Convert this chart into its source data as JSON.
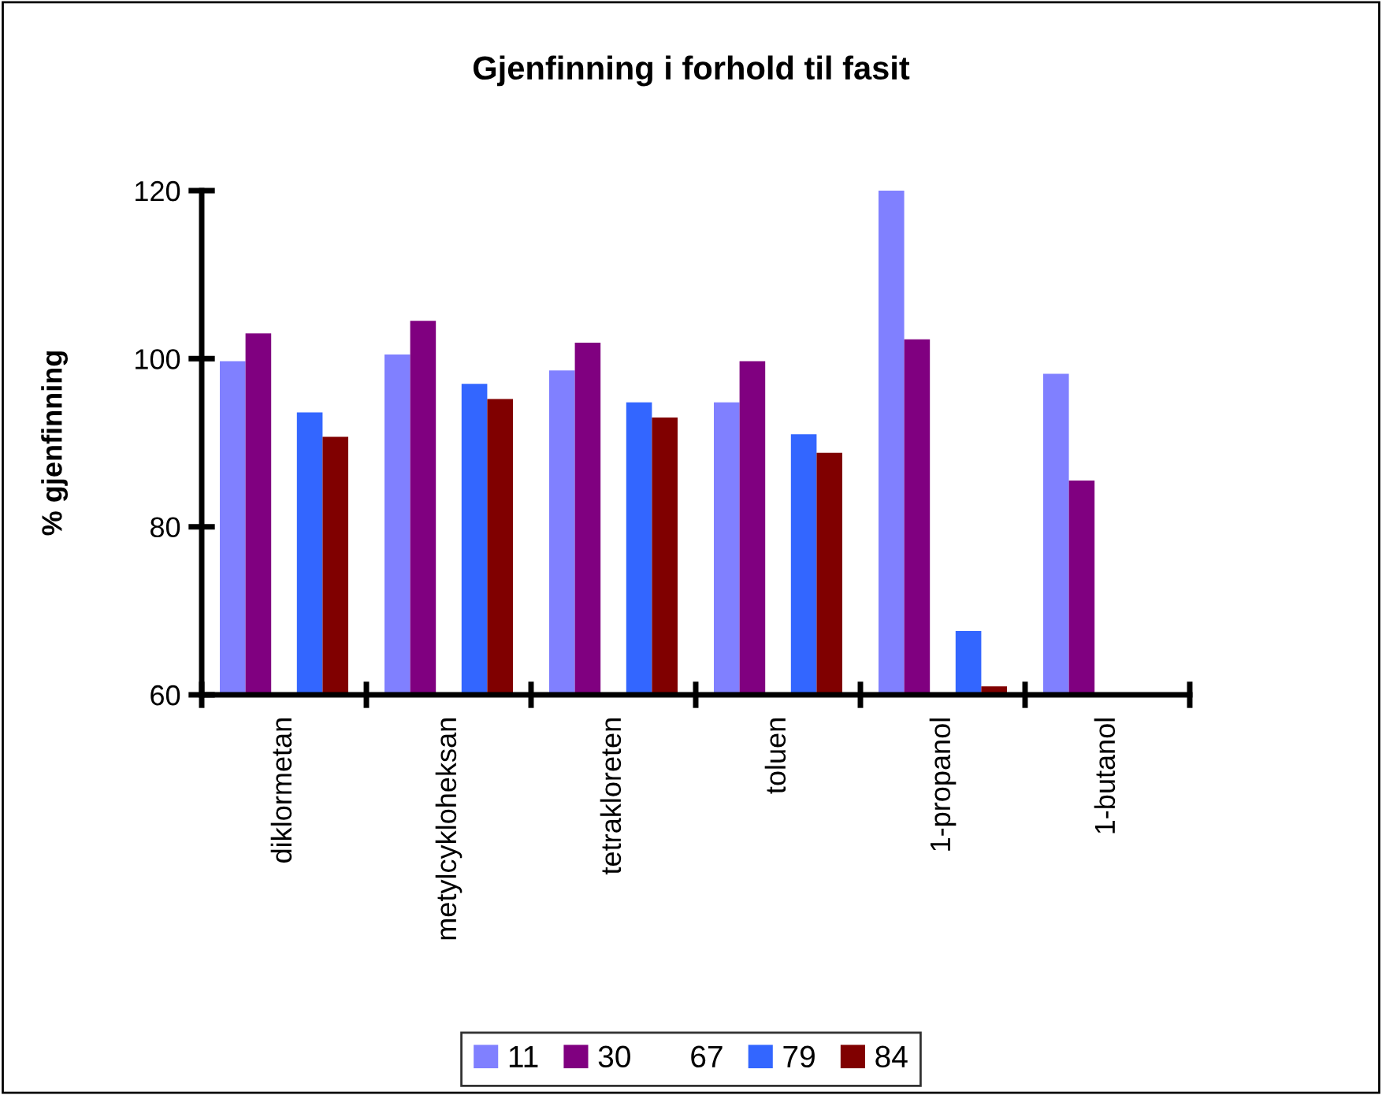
{
  "chart_data": {
    "type": "bar",
    "title": "Gjenfinning i forhold til fasit",
    "ylabel": "% gjenfinning",
    "categories": [
      "diklormetan",
      "metylcykloheksan",
      "tetrakloreten",
      "toluen",
      "1-propanol",
      "1-butanol"
    ],
    "series": [
      {
        "name": "11",
        "color": "#8080ff",
        "values": [
          99.7,
          100.5,
          98.6,
          94.8,
          120,
          98.2
        ]
      },
      {
        "name": "30",
        "color": "#800080",
        "values": [
          103.0,
          104.5,
          101.9,
          99.7,
          102.3,
          85.5
        ]
      },
      {
        "name": "67",
        "values": [
          null,
          null,
          null,
          null,
          null,
          null
        ]
      },
      {
        "name": "79",
        "color": "#3366ff",
        "values": [
          93.6,
          97.0,
          94.8,
          91.0,
          67.6,
          null
        ]
      },
      {
        "name": "84",
        "color": "#800000",
        "values": [
          90.7,
          95.2,
          93.0,
          88.8,
          61.0,
          null
        ]
      }
    ],
    "ylim": [
      60,
      120
    ],
    "yticks": [
      60,
      80,
      100,
      120
    ],
    "grid": false,
    "legend": "bottom"
  }
}
